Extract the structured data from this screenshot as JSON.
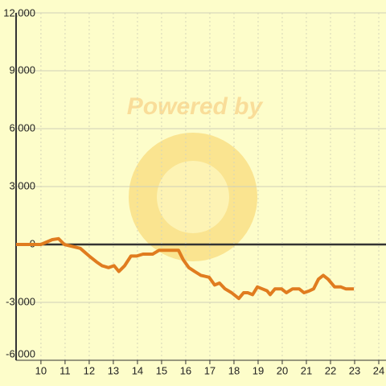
{
  "chart_data": {
    "type": "line",
    "watermark": "Powered by",
    "x": [
      8.97,
      10,
      10.47,
      10.73,
      10.97,
      11.3,
      11.63,
      12,
      12.3,
      12.53,
      12.8,
      13.03,
      13.23,
      13.47,
      13.73,
      13.97,
      14.23,
      14.63,
      14.9,
      15.13,
      15.7,
      15.9,
      16.13,
      16.37,
      16.63,
      16.97,
      17.2,
      17.4,
      17.63,
      17.9,
      18.2,
      18.4,
      18.57,
      18.77,
      18.97,
      19.17,
      19.37,
      19.5,
      19.7,
      19.97,
      20.17,
      20.43,
      20.7,
      20.9,
      21.13,
      21.3,
      21.5,
      21.7,
      21.9,
      22.17,
      22.43,
      22.63,
      22.97
    ],
    "series": [
      {
        "color": "#e07c1f",
        "values": [
          0,
          0,
          250,
          300,
          0,
          -100,
          -200,
          -600,
          -900,
          -1100,
          -1200,
          -1100,
          -1400,
          -1100,
          -600,
          -600,
          -500,
          -500,
          -300,
          -300,
          -300,
          -800,
          -1200,
          -1400,
          -1600,
          -1700,
          -2100,
          -2000,
          -2300,
          -2500,
          -2800,
          -2500,
          -2500,
          -2600,
          -2200,
          -2300,
          -2400,
          -2600,
          -2300,
          -2300,
          -2500,
          -2300,
          -2300,
          -2500,
          -2400,
          -2300,
          -1800,
          -1600,
          -1800,
          -2200,
          -2200,
          -2300,
          -2300
        ]
      }
    ],
    "xlim": [
      8.97,
      24.3
    ],
    "ylim": [
      -6000,
      12000
    ],
    "xticks": [
      10,
      11,
      12,
      13,
      14,
      15,
      16,
      17,
      18,
      19,
      20,
      21,
      22,
      23,
      24
    ],
    "yticks": [
      {
        "value": -6000,
        "label": "-6,000"
      },
      {
        "value": -3000,
        "label": "-3,000"
      },
      0,
      {
        "value": 3000,
        "label": "3,000"
      },
      {
        "value": 6000,
        "label": "6,000"
      },
      {
        "value": 9000,
        "label": "9,000"
      },
      {
        "value": 12000,
        "label": "12,000"
      }
    ],
    "grid": true
  }
}
